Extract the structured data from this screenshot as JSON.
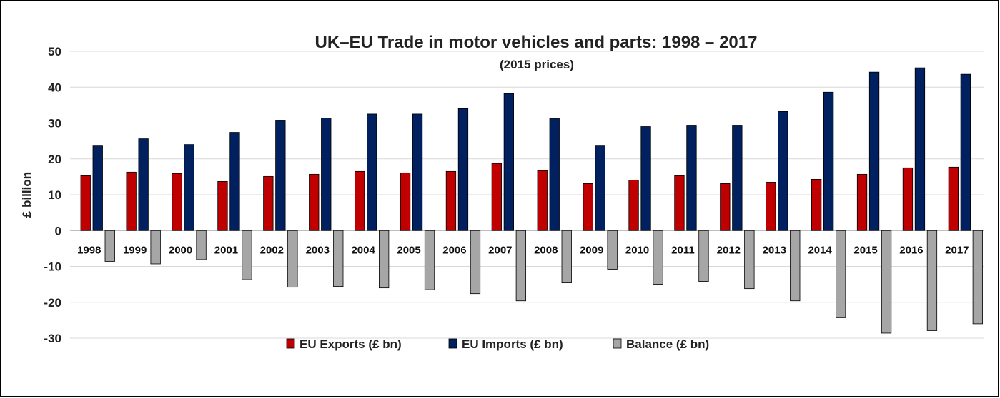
{
  "chart_data": {
    "type": "bar",
    "title": "UK–EU Trade in motor vehicles and parts: 1998 – 2017",
    "subtitle": "(2015 prices)",
    "ylabel": "£ billion",
    "xlabel": "",
    "ylim": [
      -30,
      50
    ],
    "yticks": [
      50,
      40,
      30,
      20,
      10,
      0,
      -10,
      -20,
      -30
    ],
    "grid": true,
    "legend_position": "bottom",
    "categories": [
      "1998",
      "1999",
      "2000",
      "2001",
      "2002",
      "2003",
      "2004",
      "2005",
      "2006",
      "2007",
      "2008",
      "2009",
      "2010",
      "2011",
      "2012",
      "2013",
      "2014",
      "2015",
      "2016",
      "2017"
    ],
    "series": [
      {
        "name": "EU Exports (£ bn)",
        "color": "#c00000",
        "values": [
          15.3,
          16.3,
          15.9,
          13.7,
          15.1,
          15.7,
          16.5,
          16.1,
          16.5,
          18.7,
          16.7,
          13.1,
          14.1,
          15.3,
          13.1,
          13.5,
          14.3,
          15.7,
          17.5,
          17.7
        ]
      },
      {
        "name": "EU Imports (£ bn)",
        "color": "#002060",
        "values": [
          23.8,
          25.6,
          24.0,
          27.4,
          30.8,
          31.4,
          32.5,
          32.5,
          34.0,
          38.2,
          31.2,
          23.8,
          29.0,
          29.4,
          29.4,
          33.2,
          38.6,
          44.2,
          45.4,
          43.6
        ]
      },
      {
        "name": "Balance (£ bn)",
        "color": "#a6a6a6",
        "values": [
          -8.6,
          -9.3,
          -8.1,
          -13.7,
          -15.8,
          -15.6,
          -16.0,
          -16.5,
          -17.6,
          -19.6,
          -14.6,
          -10.8,
          -15.0,
          -14.2,
          -16.2,
          -19.6,
          -24.3,
          -28.6,
          -27.9,
          -26.0
        ]
      }
    ]
  }
}
